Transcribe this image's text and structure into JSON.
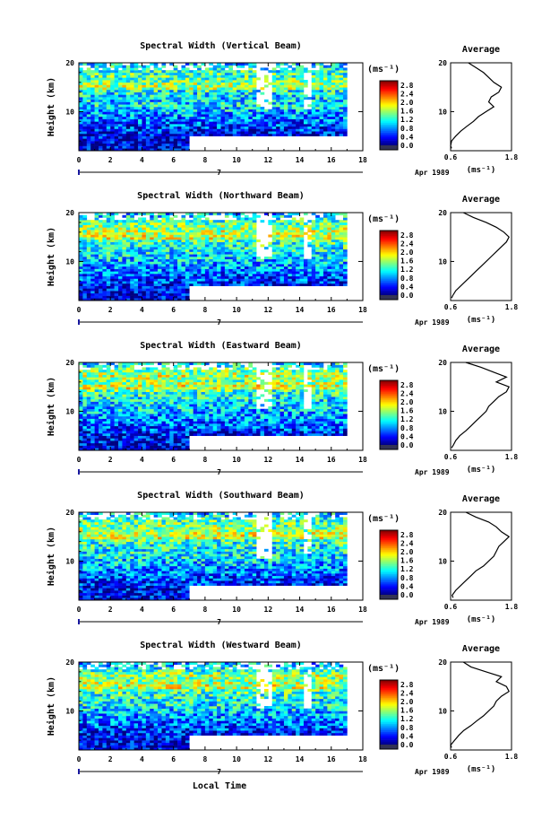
{
  "figure": {
    "xlabel": "Local Time",
    "height_label": "Height (km)",
    "units_label": "(ms⁻¹)",
    "avg_title": "Average",
    "date_label": "Apr 1989",
    "day_label": "7"
  },
  "chart_data": [
    {
      "type": "heatmap",
      "title": "Spectral Width (Vertical Beam)",
      "x_ticks": [
        "0",
        "2",
        "4",
        "6",
        "8",
        "10",
        "12",
        "14",
        "16",
        "18"
      ],
      "xlim": [
        0,
        18
      ],
      "y_ticks": [
        "10",
        "20"
      ],
      "ylim": [
        2,
        20
      ],
      "colorbar": {
        "ticks": [
          "0.0",
          "0.4",
          "0.8",
          "1.2",
          "1.6",
          "2.0",
          "2.4",
          "2.8"
        ],
        "range": [
          0,
          3.0
        ]
      },
      "average_profile": {
        "x_ticks": [
          "0.6",
          "1.8"
        ],
        "xlim": [
          0.6,
          1.8
        ],
        "ylim": [
          2,
          20
        ],
        "y_ticks": [
          "10",
          "20"
        ],
        "height": [
          2.5,
          3,
          4,
          5,
          6,
          7,
          8,
          9,
          10,
          11,
          12,
          13,
          14,
          15,
          16,
          17,
          18,
          19,
          20
        ],
        "width": [
          0.62,
          0.6,
          0.62,
          0.7,
          0.8,
          0.92,
          1.05,
          1.15,
          1.3,
          1.45,
          1.35,
          1.4,
          1.55,
          1.6,
          1.45,
          1.35,
          1.25,
          1.1,
          0.95
        ]
      }
    },
    {
      "type": "heatmap",
      "title": "Spectral Width (Northward Beam)",
      "x_ticks": [
        "0",
        "2",
        "4",
        "6",
        "8",
        "10",
        "12",
        "14",
        "16",
        "18"
      ],
      "xlim": [
        0,
        18
      ],
      "y_ticks": [
        "10",
        "20"
      ],
      "ylim": [
        2,
        20
      ],
      "colorbar": {
        "ticks": [
          "0.0",
          "0.4",
          "0.8",
          "1.2",
          "1.6",
          "2.0",
          "2.4",
          "2.8"
        ],
        "range": [
          0,
          3.0
        ]
      },
      "average_profile": {
        "x_ticks": [
          "0.6",
          "1.8"
        ],
        "xlim": [
          0.6,
          1.8
        ],
        "ylim": [
          2,
          20
        ],
        "y_ticks": [
          "10",
          "20"
        ],
        "height": [
          2.5,
          3,
          4,
          5,
          6,
          7,
          8,
          9,
          10,
          11,
          12,
          13,
          14,
          15,
          16,
          17,
          18,
          19,
          20
        ],
        "width": [
          0.62,
          0.64,
          0.7,
          0.8,
          0.9,
          1.0,
          1.1,
          1.2,
          1.3,
          1.4,
          1.5,
          1.6,
          1.7,
          1.75,
          1.65,
          1.5,
          1.3,
          1.05,
          0.85
        ]
      }
    },
    {
      "type": "heatmap",
      "title": "Spectral Width (Eastward Beam)",
      "x_ticks": [
        "0",
        "2",
        "4",
        "6",
        "8",
        "10",
        "12",
        "14",
        "16",
        "18"
      ],
      "xlim": [
        0,
        18
      ],
      "y_ticks": [
        "10",
        "20"
      ],
      "ylim": [
        2,
        20
      ],
      "colorbar": {
        "ticks": [
          "0.0",
          "0.4",
          "0.8",
          "1.2",
          "1.6",
          "2.0",
          "2.4",
          "2.8"
        ],
        "range": [
          0,
          3.0
        ]
      },
      "average_profile": {
        "x_ticks": [
          "0.6",
          "1.8"
        ],
        "xlim": [
          0.6,
          1.8
        ],
        "ylim": [
          2,
          20
        ],
        "y_ticks": [
          "10",
          "20"
        ],
        "height": [
          2.5,
          3,
          4,
          5,
          6,
          7,
          8,
          9,
          10,
          11,
          12,
          13,
          14,
          15,
          16,
          17,
          18,
          19,
          20
        ],
        "width": [
          0.62,
          0.65,
          0.7,
          0.78,
          0.9,
          1.0,
          1.1,
          1.2,
          1.3,
          1.35,
          1.45,
          1.55,
          1.7,
          1.75,
          1.5,
          1.7,
          1.45,
          1.2,
          0.9
        ]
      }
    },
    {
      "type": "heatmap",
      "title": "Spectral Width (Southward Beam)",
      "x_ticks": [
        "0",
        "2",
        "4",
        "6",
        "8",
        "10",
        "12",
        "14",
        "16",
        "18"
      ],
      "xlim": [
        0,
        18
      ],
      "y_ticks": [
        "10",
        "20"
      ],
      "ylim": [
        2,
        20
      ],
      "colorbar": {
        "ticks": [
          "0.0",
          "0.4",
          "0.8",
          "1.2",
          "1.6",
          "2.0",
          "2.4",
          "2.8"
        ],
        "range": [
          0,
          3.0
        ]
      },
      "average_profile": {
        "x_ticks": [
          "0.6",
          "1.8"
        ],
        "xlim": [
          0.6,
          1.8
        ],
        "ylim": [
          2,
          20
        ],
        "y_ticks": [
          "10",
          "20"
        ],
        "height": [
          2.5,
          3,
          4,
          5,
          6,
          7,
          8,
          9,
          10,
          11,
          12,
          13,
          14,
          15,
          16,
          17,
          18,
          19,
          20
        ],
        "width": [
          0.65,
          0.63,
          0.7,
          0.8,
          0.9,
          1.0,
          1.1,
          1.25,
          1.35,
          1.45,
          1.5,
          1.55,
          1.65,
          1.75,
          1.6,
          1.5,
          1.35,
          1.1,
          0.9
        ]
      }
    },
    {
      "type": "heatmap",
      "title": "Spectral Width (Westward Beam)",
      "x_ticks": [
        "0",
        "2",
        "4",
        "6",
        "8",
        "10",
        "12",
        "14",
        "16",
        "18"
      ],
      "xlim": [
        0,
        18
      ],
      "y_ticks": [
        "10",
        "20"
      ],
      "ylim": [
        2,
        20
      ],
      "colorbar": {
        "ticks": [
          "0.0",
          "0.4",
          "0.8",
          "1.2",
          "1.6",
          "2.0",
          "2.4",
          "2.8"
        ],
        "range": [
          0,
          3.0
        ]
      },
      "average_profile": {
        "x_ticks": [
          "0.6",
          "1.8"
        ],
        "xlim": [
          0.6,
          1.8
        ],
        "ylim": [
          2,
          20
        ],
        "y_ticks": [
          "10",
          "20"
        ],
        "height": [
          2.5,
          3,
          4,
          5,
          6,
          7,
          8,
          9,
          10,
          11,
          12,
          13,
          14,
          15,
          16,
          17,
          18,
          19,
          20
        ],
        "width": [
          0.62,
          0.6,
          0.68,
          0.76,
          0.86,
          1.0,
          1.12,
          1.25,
          1.35,
          1.45,
          1.5,
          1.6,
          1.75,
          1.7,
          1.5,
          1.6,
          1.3,
          1.0,
          0.85
        ]
      }
    }
  ]
}
